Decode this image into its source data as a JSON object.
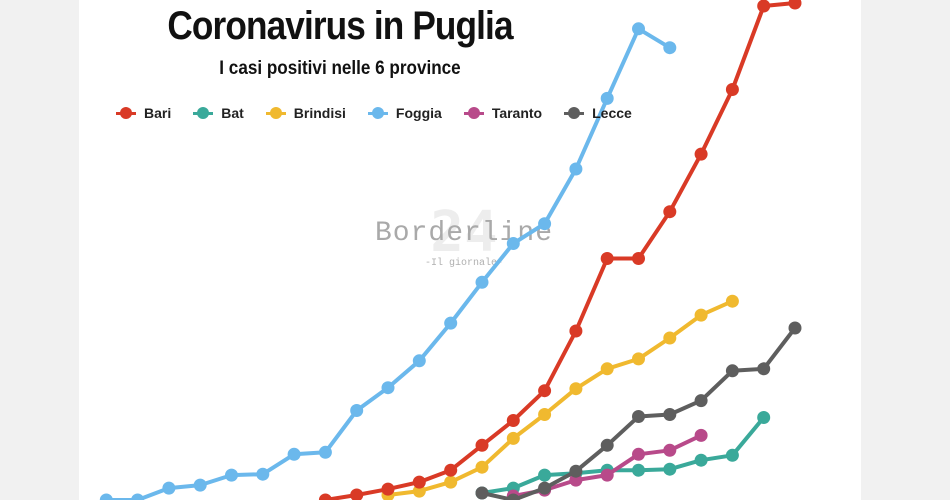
{
  "chart_data": {
    "type": "line",
    "title": "Coronavirus in Puglia",
    "subtitle": "I casi positivi nelle 6 province",
    "xlabel": "",
    "ylabel": "",
    "grid": false,
    "legend_position": "top-left",
    "x": [
      1,
      2,
      3,
      4,
      5,
      6,
      7,
      8,
      9,
      10,
      11,
      12,
      13,
      14,
      15,
      16,
      17,
      18,
      19,
      20,
      21,
      22,
      23,
      24
    ],
    "ylim": [
      0,
      500
    ],
    "series": [
      {
        "name": "Bari",
        "color": "#d93a26",
        "values": [
          null,
          null,
          null,
          null,
          null,
          null,
          null,
          null,
          0,
          5,
          11,
          18,
          30,
          55,
          80,
          110,
          170,
          243,
          243,
          290,
          348,
          413,
          497,
          500
        ]
      },
      {
        "name": "Bat",
        "color": "#3aa99a",
        "values": [
          null,
          null,
          null,
          null,
          null,
          null,
          null,
          null,
          null,
          null,
          null,
          null,
          null,
          7,
          12,
          25,
          27,
          30,
          30,
          31,
          40,
          45,
          83,
          null
        ]
      },
      {
        "name": "Brindisi",
        "color": "#f0b92f",
        "values": [
          null,
          null,
          null,
          null,
          null,
          null,
          null,
          null,
          null,
          null,
          5,
          9,
          18,
          33,
          62,
          86,
          112,
          132,
          142,
          163,
          186,
          200,
          null,
          null
        ]
      },
      {
        "name": "Foggia",
        "color": "#6bb8ec",
        "values": [
          null,
          0,
          0,
          12,
          15,
          25,
          26,
          46,
          48,
          90,
          113,
          140,
          178,
          219,
          258,
          278,
          333,
          404,
          474,
          455,
          null,
          null,
          null,
          null
        ]
      },
      {
        "name": "Taranto",
        "color": "#b84a8a",
        "values": [
          null,
          null,
          null,
          null,
          null,
          null,
          null,
          null,
          null,
          null,
          null,
          null,
          null,
          null,
          4,
          10,
          20,
          25,
          46,
          50,
          65,
          null,
          null,
          null
        ]
      },
      {
        "name": "Lecce",
        "color": "#5e5e5e",
        "values": [
          null,
          null,
          null,
          null,
          null,
          null,
          null,
          null,
          null,
          null,
          null,
          null,
          null,
          7,
          0,
          12,
          29,
          55,
          84,
          86,
          100,
          130,
          132,
          173
        ]
      }
    ]
  },
  "watermark": {
    "number": "24",
    "name": "Borderline",
    "tagline": "-Il giornale-"
  }
}
